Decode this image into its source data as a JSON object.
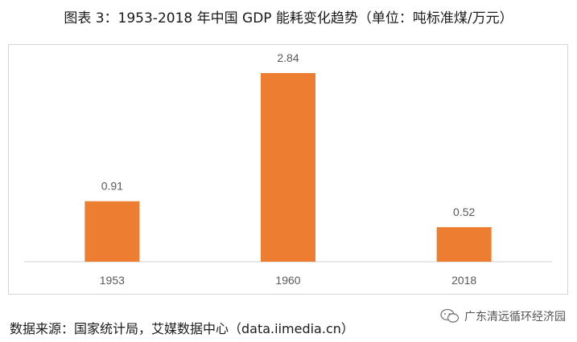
{
  "title": "图表 3：1953-2018 年中国 GDP 能耗变化趋势（单位：吨标准煤/万元）",
  "source": "数据来源：国家统计局，艾媒数据中心（data.iimedia.cn）",
  "watermark": {
    "text": "广东清远循环经济园",
    "icon": "wechat-icon"
  },
  "colors": {
    "bar": "#ED7D31",
    "axis": "#d0d0d0",
    "label": "#595959"
  },
  "chart_data": {
    "type": "bar",
    "categories": [
      "1953",
      "1960",
      "2018"
    ],
    "values": [
      0.91,
      2.84,
      0.52
    ],
    "data_labels": [
      "0.91",
      "2.84",
      "0.52"
    ],
    "ylim": [
      0,
      3.0
    ],
    "grid": false,
    "legend": "none"
  }
}
